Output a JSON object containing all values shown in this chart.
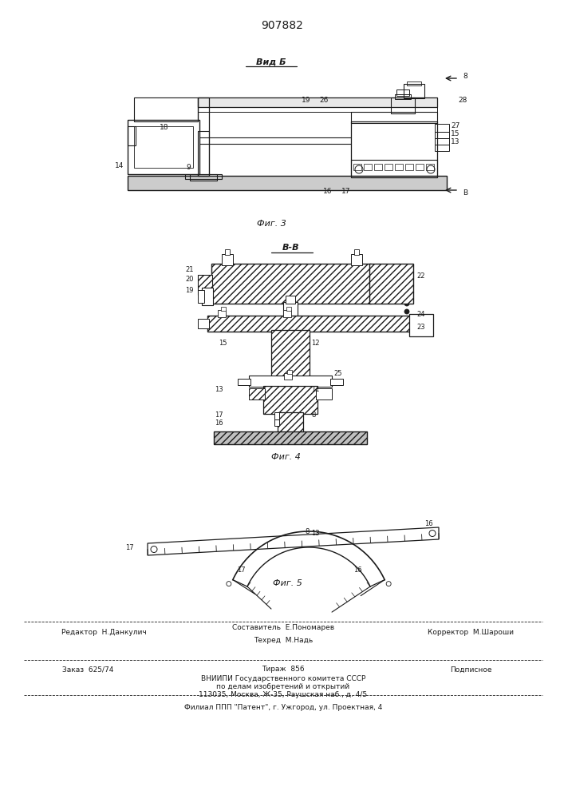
{
  "patent_number": "907882",
  "bg": "#ffffff",
  "lc": "#1a1a1a",
  "fig3_title": "Вид Б",
  "fig3_caption": "Фиг. 3",
  "fig4_title": "В-В",
  "fig4_caption": "Фиг. 4",
  "fig5_caption": "Фиг. 5",
  "footer_ed": "Редактор  Н.Данкулич",
  "footer_comp": "Составитель  Е.Пономарев",
  "footer_tech": "Техред  М.Надь",
  "footer_corr": "Корректор  М.Шароши",
  "footer_order": "Заказ  625/74",
  "footer_circ": "Тираж  856",
  "footer_sub": "Подписное",
  "footer_l3": "ВНИИПИ Государственного комитета СССР",
  "footer_l4": "по делам изобретений и открытий",
  "footer_l5": "113035, Москва, Ж-35, Раушская наб., д. 4/5",
  "footer_l6": "Филиал ППП \"Патент\", г. Ужгород, ул. Проектная, 4"
}
